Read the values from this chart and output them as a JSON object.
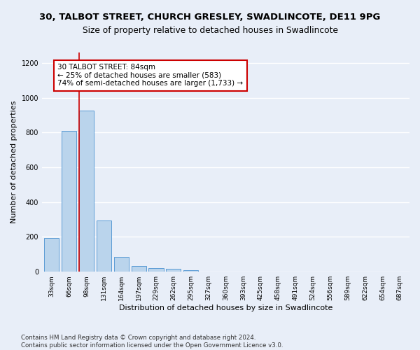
{
  "title_line1": "30, TALBOT STREET, CHURCH GRESLEY, SWADLINCOTE, DE11 9PG",
  "title_line2": "Size of property relative to detached houses in Swadlincote",
  "xlabel": "Distribution of detached houses by size in Swadlincote",
  "ylabel": "Number of detached properties",
  "footnote": "Contains HM Land Registry data © Crown copyright and database right 2024.\nContains public sector information licensed under the Open Government Licence v3.0.",
  "bar_labels": [
    "33sqm",
    "66sqm",
    "98sqm",
    "131sqm",
    "164sqm",
    "197sqm",
    "229sqm",
    "262sqm",
    "295sqm",
    "327sqm",
    "360sqm",
    "393sqm",
    "425sqm",
    "458sqm",
    "491sqm",
    "524sqm",
    "556sqm",
    "589sqm",
    "622sqm",
    "654sqm",
    "687sqm"
  ],
  "bar_values": [
    195,
    810,
    925,
    295,
    85,
    35,
    20,
    15,
    10,
    0,
    0,
    0,
    0,
    0,
    0,
    0,
    0,
    0,
    0,
    0,
    0
  ],
  "bar_color": "#bad4ec",
  "bar_edge_color": "#5b9bd5",
  "annotation_text": "30 TALBOT STREET: 84sqm\n← 25% of detached houses are smaller (583)\n74% of semi-detached houses are larger (1,733) →",
  "annotation_box_color": "#ffffff",
  "annotation_border_color": "#cc0000",
  "vline_color": "#cc0000",
  "vline_x": 1.56,
  "ylim": [
    0,
    1260
  ],
  "yticks": [
    0,
    200,
    400,
    600,
    800,
    1000,
    1200
  ],
  "background_color": "#e8eef8",
  "grid_color": "#ffffff",
  "title_fontsize": 9.5,
  "subtitle_fontsize": 9
}
